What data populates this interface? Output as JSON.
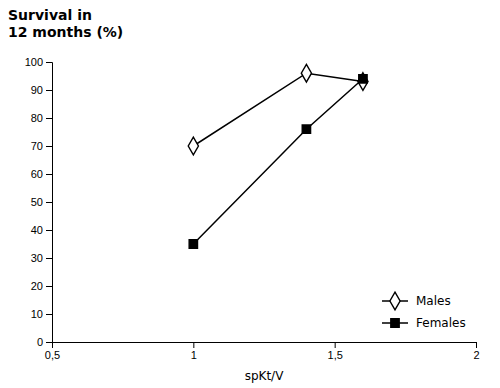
{
  "chart_data": {
    "type": "line",
    "title": "Survival in\n12 months (%)",
    "x_label": "spKt/V",
    "x": [
      1.0,
      1.4,
      1.6
    ],
    "series": [
      {
        "name": "Males",
        "color": "black",
        "marker": "diamond",
        "values": [
          70,
          96,
          93
        ]
      },
      {
        "name": "Females",
        "color": "black",
        "marker": "square",
        "values": [
          35,
          76,
          94
        ]
      }
    ],
    "xlim": [
      0.5,
      2.0
    ],
    "xticks": [
      {
        "value": 0.5,
        "label": "0,5"
      },
      1,
      {
        "value": 1.5,
        "label": "1,5"
      },
      2
    ],
    "ylim": [
      0,
      100
    ],
    "yticks": [
      0,
      10,
      20,
      30,
      40,
      50,
      60,
      70,
      80,
      90,
      100
    ],
    "grid": false,
    "legend": "lower right"
  }
}
